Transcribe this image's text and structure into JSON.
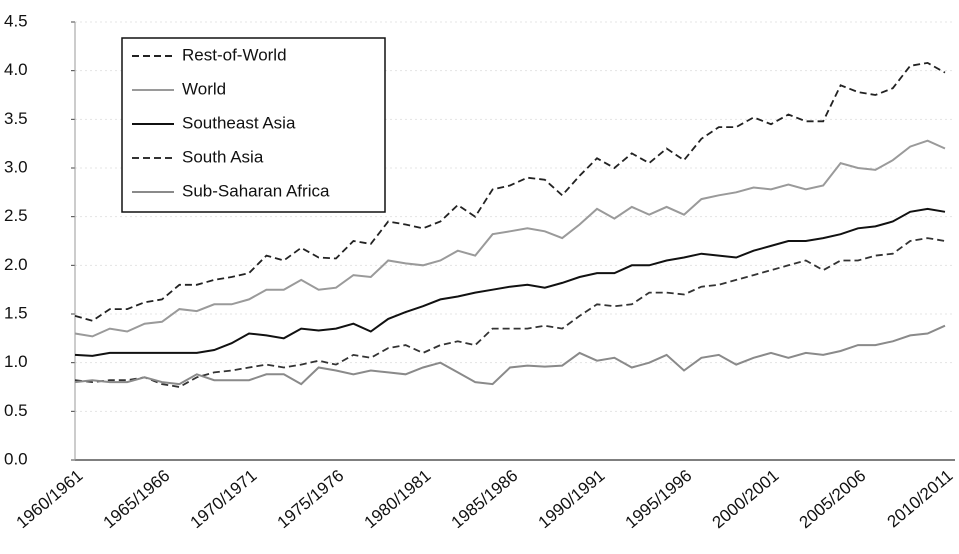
{
  "chart_data": {
    "type": "line",
    "categories": [
      "1960/1961",
      null,
      null,
      null,
      null,
      "1965/1966",
      null,
      null,
      null,
      null,
      "1970/1971",
      null,
      null,
      null,
      null,
      "1975/1976",
      null,
      null,
      null,
      null,
      "1980/1981",
      null,
      null,
      null,
      null,
      "1985/1986",
      null,
      null,
      null,
      null,
      "1990/1991",
      null,
      null,
      null,
      null,
      "1995/1996",
      null,
      null,
      null,
      null,
      "2000/2001",
      null,
      null,
      null,
      null,
      "2005/2006",
      null,
      null,
      null,
      null,
      "2010/2011"
    ],
    "ylim": [
      0,
      4.5
    ],
    "yticks": [
      {
        "value": 0,
        "label": "0.0"
      },
      0.5,
      {
        "value": 1,
        "label": "1.0"
      },
      1.5,
      {
        "value": 2,
        "label": "2.0"
      },
      2.5,
      {
        "value": 3,
        "label": "3.0"
      },
      3.5,
      {
        "value": 4,
        "label": "4.0"
      },
      4.5
    ],
    "grid": true,
    "legend": "top-left",
    "series": [
      {
        "name": "Rest-of-World",
        "color": "#222222",
        "dashed": true,
        "values": [
          1.48,
          1.43,
          1.55,
          1.55,
          1.62,
          1.65,
          1.8,
          1.8,
          1.85,
          1.88,
          1.92,
          2.1,
          2.05,
          2.18,
          2.08,
          2.07,
          2.25,
          2.22,
          2.45,
          2.42,
          2.38,
          2.45,
          2.62,
          2.5,
          2.78,
          2.82,
          2.9,
          2.88,
          2.72,
          2.92,
          3.1,
          3.0,
          3.15,
          3.05,
          3.2,
          3.08,
          3.3,
          3.42,
          3.42,
          3.52,
          3.45,
          3.55,
          3.48,
          3.48,
          3.85,
          3.78,
          3.75,
          3.82,
          4.05,
          4.08,
          3.98
        ]
      },
      {
        "name": "World",
        "color": "#9a9a9a",
        "dashed": false,
        "values": [
          1.3,
          1.27,
          1.35,
          1.32,
          1.4,
          1.42,
          1.55,
          1.53,
          1.6,
          1.6,
          1.65,
          1.75,
          1.75,
          1.85,
          1.75,
          1.77,
          1.9,
          1.88,
          2.05,
          2.02,
          2.0,
          2.05,
          2.15,
          2.1,
          2.32,
          2.35,
          2.38,
          2.35,
          2.28,
          2.42,
          2.58,
          2.48,
          2.6,
          2.52,
          2.6,
          2.52,
          2.68,
          2.72,
          2.75,
          2.8,
          2.78,
          2.83,
          2.78,
          2.82,
          3.05,
          3.0,
          2.98,
          3.08,
          3.22,
          3.28,
          3.2
        ]
      },
      {
        "name": "Southeast Asia",
        "color": "#111111",
        "dashed": false,
        "values": [
          1.08,
          1.07,
          1.1,
          1.1,
          1.1,
          1.1,
          1.1,
          1.1,
          1.13,
          1.2,
          1.3,
          1.28,
          1.25,
          1.35,
          1.33,
          1.35,
          1.4,
          1.32,
          1.45,
          1.52,
          1.58,
          1.65,
          1.68,
          1.72,
          1.75,
          1.78,
          1.8,
          1.77,
          1.82,
          1.88,
          1.92,
          1.92,
          2.0,
          2.0,
          2.05,
          2.08,
          2.12,
          2.1,
          2.08,
          2.15,
          2.2,
          2.25,
          2.25,
          2.28,
          2.32,
          2.38,
          2.4,
          2.45,
          2.55,
          2.58,
          2.55
        ]
      },
      {
        "name": "South Asia",
        "color": "#333333",
        "dashed": true,
        "values": [
          0.82,
          0.8,
          0.82,
          0.82,
          0.85,
          0.78,
          0.75,
          0.85,
          0.9,
          0.92,
          0.95,
          0.98,
          0.95,
          0.98,
          1.02,
          0.98,
          1.08,
          1.05,
          1.15,
          1.18,
          1.1,
          1.18,
          1.22,
          1.18,
          1.35,
          1.35,
          1.35,
          1.38,
          1.35,
          1.48,
          1.6,
          1.58,
          1.6,
          1.72,
          1.72,
          1.7,
          1.78,
          1.8,
          1.85,
          1.9,
          1.95,
          2.0,
          2.05,
          1.95,
          2.05,
          2.05,
          2.1,
          2.12,
          2.25,
          2.28,
          2.25
        ]
      },
      {
        "name": "Sub-Saharan Africa",
        "color": "#8a8a8a",
        "dashed": false,
        "values": [
          0.8,
          0.82,
          0.8,
          0.8,
          0.85,
          0.8,
          0.78,
          0.88,
          0.82,
          0.82,
          0.82,
          0.88,
          0.88,
          0.78,
          0.95,
          0.92,
          0.88,
          0.92,
          0.9,
          0.88,
          0.95,
          1.0,
          0.9,
          0.8,
          0.78,
          0.95,
          0.97,
          0.96,
          0.97,
          1.1,
          1.02,
          1.05,
          0.95,
          1.0,
          1.08,
          0.92,
          1.05,
          1.08,
          0.98,
          1.05,
          1.1,
          1.05,
          1.1,
          1.08,
          1.12,
          1.18,
          1.18,
          1.22,
          1.28,
          1.3,
          1.38
        ]
      }
    ]
  }
}
